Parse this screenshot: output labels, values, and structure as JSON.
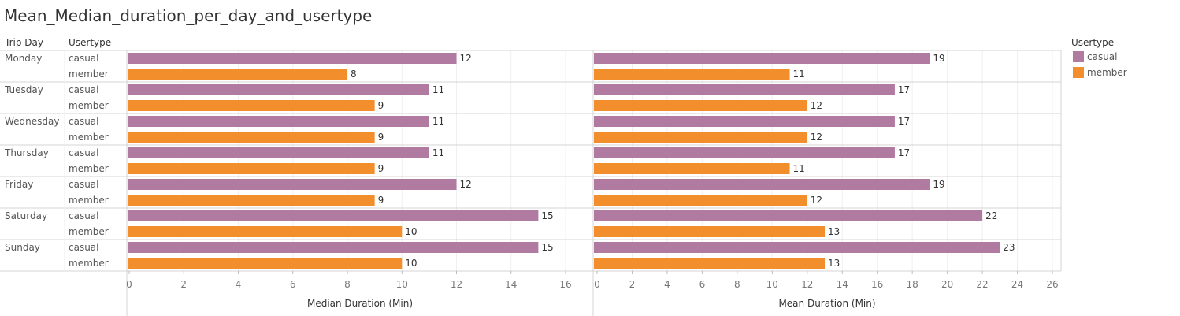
{
  "title": "Mean_Median_duration_per_day_and_usertype",
  "headers": {
    "trip_day": "Trip Day",
    "usertype": "Usertype"
  },
  "legend": {
    "title": "Usertype",
    "items": [
      {
        "label": "casual",
        "color": "#b07aa1"
      },
      {
        "label": "member",
        "color": "#f28e2b"
      }
    ]
  },
  "chart_data": {
    "type": "bar",
    "orientation": "horizontal",
    "days": [
      "Monday",
      "Tuesday",
      "Wednesday",
      "Thursday",
      "Friday",
      "Saturday",
      "Sunday"
    ],
    "usertypes": [
      "casual",
      "member"
    ],
    "panels": [
      {
        "xlabel": "Median Duration (Min)",
        "xlim": [
          0,
          16
        ],
        "ticks": [
          0,
          2,
          4,
          6,
          8,
          10,
          12,
          14,
          16
        ],
        "series": [
          {
            "name": "casual",
            "values": [
              12,
              11,
              11,
              11,
              12,
              15,
              15
            ]
          },
          {
            "name": "member",
            "values": [
              8,
              9,
              9,
              9,
              9,
              10,
              10
            ]
          }
        ]
      },
      {
        "xlabel": "Mean Duration (Min)",
        "xlim": [
          0,
          26
        ],
        "ticks": [
          0,
          2,
          4,
          6,
          8,
          10,
          12,
          14,
          16,
          18,
          20,
          22,
          24,
          26
        ],
        "series": [
          {
            "name": "casual",
            "values": [
              19,
              17,
              17,
              17,
              19,
              22,
              23
            ]
          },
          {
            "name": "member",
            "values": [
              11,
              12,
              12,
              11,
              12,
              13,
              13
            ]
          }
        ]
      }
    ],
    "grid": true,
    "legend_position": "right"
  }
}
